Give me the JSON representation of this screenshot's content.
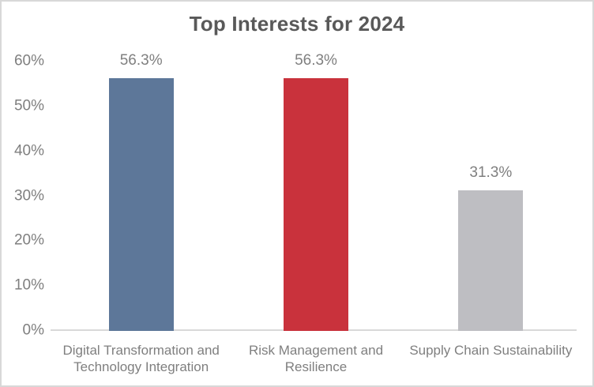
{
  "window": {
    "background": "#FFFFFF",
    "border_color": "#D8D8D8"
  },
  "chart_data": {
    "type": "bar",
    "title": "Top Interests for 2024",
    "categories": [
      "Digital Transformation and Technology Integration",
      "Risk Management and Resilience",
      "Supply Chain Sustainability"
    ],
    "category_label_lines": [
      [
        "Digital Transformation and",
        "Technology Integration"
      ],
      [
        "Risk Management and",
        "Resilience"
      ],
      [
        "Supply Chain Sustainability"
      ]
    ],
    "values": [
      56.3,
      56.3,
      31.3
    ],
    "value_labels": [
      "56.3%",
      "56.3%",
      "31.3%"
    ],
    "series_colors": [
      "#5D7799",
      "#C9323C",
      "#BEBEC2"
    ],
    "xlabel": "",
    "ylabel": "",
    "ylim": [
      0,
      60
    ],
    "y_ticks": [
      {
        "value": 0,
        "label": "0%"
      },
      {
        "value": 10,
        "label": "10%"
      },
      {
        "value": 20,
        "label": "20%"
      },
      {
        "value": 30,
        "label": "30%"
      },
      {
        "value": 40,
        "label": "40%"
      },
      {
        "value": 50,
        "label": "50%"
      },
      {
        "value": 60,
        "label": "60%"
      }
    ],
    "grid": false,
    "legend": false,
    "colors": {
      "title_text": "#595959",
      "axis_text": "#7F7F7F",
      "data_label_text": "#7F7F7F",
      "axis_line": "#D9D9D9"
    }
  }
}
